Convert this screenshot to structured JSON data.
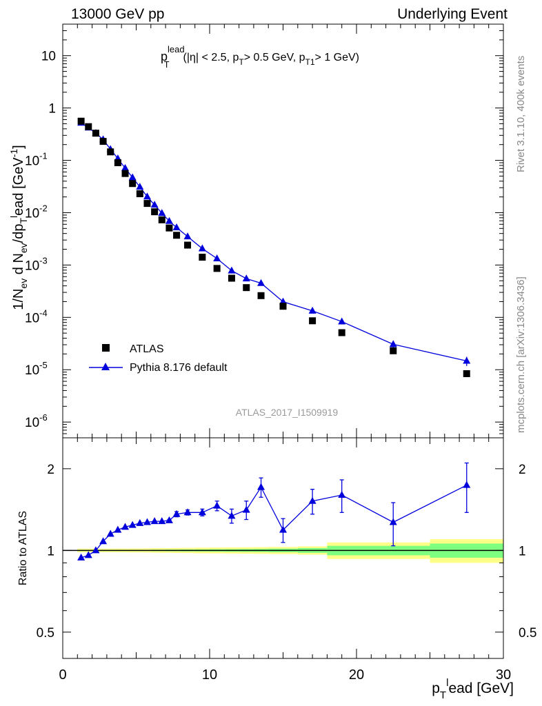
{
  "header": {
    "left": "13000 GeV pp",
    "right": "Underlying Event"
  },
  "side_labels": {
    "rivet": "Rivet 3.1.10,  400k events",
    "mcplots": "mcplots.cern.ch [arXiv:1306.3436]"
  },
  "chart_data": [
    {
      "type": "scatter",
      "panel": "main",
      "title_main": "p",
      "title_sup": "lead",
      "title_sub": "T",
      "title_rest": "(|η| < 2.5, p",
      "title_rest_sub": "T",
      "title_rest2": "> 0.5 GeV, p",
      "title_rest2_sub": "T1",
      "title_rest3": "> 1 GeV)",
      "ylabel": "1/N_ev d N_ev/dp_T^lead [GeV^-1]",
      "yscale": "log",
      "xlim": [
        0,
        30
      ],
      "ylim": [
        5e-07,
        40
      ],
      "watermark": "ATLAS_2017_I1509919",
      "legend_position": "lower-left",
      "series": [
        {
          "name": "ATLAS",
          "marker": "square",
          "color": "#000000",
          "x": [
            1.25,
            1.75,
            2.25,
            2.75,
            3.25,
            3.75,
            4.25,
            4.75,
            5.25,
            5.75,
            6.25,
            6.75,
            7.25,
            7.75,
            8.5,
            9.5,
            10.5,
            11.5,
            12.5,
            13.5,
            15.0,
            17.0,
            19.0,
            22.5,
            27.5
          ],
          "y": [
            0.56,
            0.44,
            0.33,
            0.23,
            0.145,
            0.09,
            0.056,
            0.036,
            0.023,
            0.015,
            0.0104,
            0.0073,
            0.0051,
            0.0037,
            0.0024,
            0.00141,
            0.00086,
            0.00056,
            0.00037,
            0.00026,
            0.000163,
            8.6e-05,
            5.1e-05,
            2.3e-05,
            8.4e-06
          ]
        },
        {
          "name": "Pythia 8.176 default",
          "marker": "triangle",
          "color": "#0000dd",
          "x": [
            1.25,
            1.75,
            2.25,
            2.75,
            3.25,
            3.75,
            4.25,
            4.75,
            5.25,
            5.75,
            6.25,
            6.75,
            7.25,
            7.75,
            8.5,
            9.5,
            10.5,
            11.5,
            12.5,
            13.5,
            15.0,
            17.0,
            19.0,
            22.5,
            27.5
          ],
          "y": [
            0.52,
            0.42,
            0.33,
            0.25,
            0.163,
            0.108,
            0.071,
            0.047,
            0.031,
            0.0202,
            0.0141,
            0.0098,
            0.0069,
            0.0052,
            0.0035,
            0.00206,
            0.00133,
            0.00078,
            0.00055,
            0.00045,
            0.000199,
            0.000133,
            8.3e-05,
            3.06e-05,
            1.47e-05
          ],
          "yerr_rel": [
            0,
            0,
            0,
            0,
            0,
            0,
            0,
            0,
            0,
            0,
            0,
            0,
            0,
            0,
            0,
            0,
            0,
            0,
            0,
            0,
            0,
            0,
            0.1,
            0.15,
            0.2
          ]
        }
      ],
      "yticks": [
        {
          "value": 1e-06,
          "base": "10",
          "exp": "-6"
        },
        {
          "value": 1e-05,
          "base": "10",
          "exp": "-5"
        },
        {
          "value": 0.0001,
          "base": "10",
          "exp": "-4"
        },
        {
          "value": 0.001,
          "base": "10",
          "exp": "-3"
        },
        {
          "value": 0.01,
          "base": "10",
          "exp": "-2"
        },
        {
          "value": 0.1,
          "base": "10",
          "exp": "-1"
        },
        {
          "value": 1,
          "base": "1",
          "exp": ""
        },
        {
          "value": 10,
          "base": "10",
          "exp": ""
        }
      ]
    },
    {
      "type": "scatter",
      "panel": "ratio",
      "ylabel": "Ratio to ATLAS",
      "xlabel": "p_T^lead [GeV]",
      "yscale": "log",
      "xlim": [
        0,
        30
      ],
      "ylim": [
        0.4,
        2.6
      ],
      "yticks": [
        {
          "value": 0.5,
          "label": "0.5"
        },
        {
          "value": 1,
          "label": "1"
        },
        {
          "value": 2,
          "label": "2"
        }
      ],
      "xticks": [
        0,
        10,
        20,
        30
      ],
      "bands": {
        "x_edges": [
          1.0,
          1.5,
          2.0,
          2.5,
          3.0,
          3.5,
          4.0,
          4.5,
          5.0,
          5.5,
          6.0,
          6.5,
          7.0,
          7.5,
          8.0,
          9.0,
          10.0,
          11.0,
          12.0,
          13.0,
          14.0,
          16.0,
          18.0,
          20.0,
          25.0,
          30.0
        ],
        "stat_half": [
          0.005,
          0.005,
          0.005,
          0.005,
          0.005,
          0.005,
          0.005,
          0.005,
          0.005,
          0.005,
          0.006,
          0.006,
          0.007,
          0.007,
          0.008,
          0.009,
          0.01,
          0.011,
          0.012,
          0.013,
          0.015,
          0.02,
          0.04,
          0.04,
          0.06
        ],
        "total_half": [
          0.015,
          0.015,
          0.015,
          0.015,
          0.015,
          0.016,
          0.016,
          0.017,
          0.017,
          0.018,
          0.019,
          0.02,
          0.02,
          0.021,
          0.022,
          0.024,
          0.025,
          0.026,
          0.027,
          0.028,
          0.03,
          0.035,
          0.07,
          0.07,
          0.1
        ],
        "stat_color": "#7fff7f",
        "total_color": "#ffff88"
      },
      "series": [
        {
          "name": "Pythia 8.176 default",
          "color": "#0000dd",
          "x": [
            1.25,
            1.75,
            2.25,
            2.75,
            3.25,
            3.75,
            4.25,
            4.75,
            5.25,
            5.75,
            6.25,
            6.75,
            7.25,
            7.75,
            8.5,
            9.5,
            10.5,
            11.5,
            12.5,
            13.5,
            15.0,
            17.0,
            19.0,
            22.5,
            27.5
          ],
          "y": [
            0.94,
            0.96,
            1.0,
            1.08,
            1.15,
            1.19,
            1.22,
            1.24,
            1.26,
            1.27,
            1.28,
            1.28,
            1.29,
            1.36,
            1.38,
            1.38,
            1.46,
            1.34,
            1.41,
            1.71,
            1.19,
            1.52,
            1.6,
            1.27,
            1.74
          ],
          "yerr": [
            0,
            0,
            0,
            0,
            0,
            0,
            0,
            0,
            0,
            0,
            0,
            0,
            0.01,
            0.03,
            0.03,
            0.04,
            0.06,
            0.08,
            0.11,
            0.14,
            0.12,
            0.16,
            0.22,
            0.23,
            0.36
          ]
        }
      ]
    }
  ]
}
